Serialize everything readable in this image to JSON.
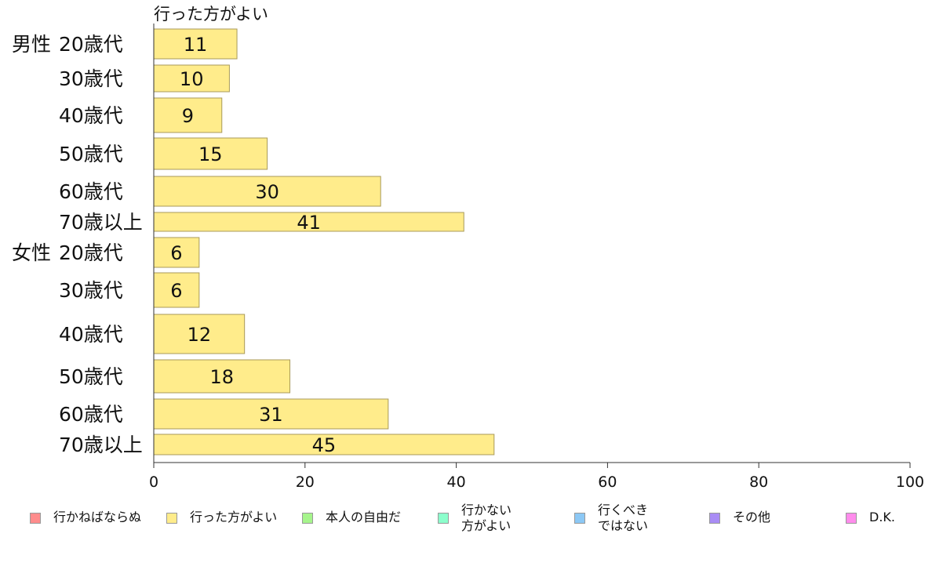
{
  "chart_data": {
    "type": "bar",
    "orientation": "horizontal",
    "title": "行った方がよい",
    "groups": [
      {
        "name": "男性",
        "categories": [
          "20歳代",
          "30歳代",
          "40歳代",
          "50歳代",
          "60歳代",
          "70歳以上"
        ],
        "values": [
          11,
          10,
          9,
          15,
          30,
          41
        ]
      },
      {
        "name": "女性",
        "categories": [
          "20歳代",
          "30歳代",
          "40歳代",
          "50歳代",
          "60歳代",
          "70歳以上"
        ],
        "values": [
          6,
          6,
          12,
          18,
          31,
          45
        ]
      }
    ],
    "xlim": [
      0,
      100
    ],
    "xticks": [
      "0",
      "20",
      "40",
      "60",
      "80",
      "100"
    ],
    "bar_color": "#ffec8b",
    "grid": false,
    "legend_position": "bottom",
    "legend": [
      {
        "label": "行かねばならぬ",
        "color": "#ff8c8c"
      },
      {
        "label": "行った方がよい",
        "color": "#ffec8b"
      },
      {
        "label": "本人の自由だ",
        "color": "#a6f58c"
      },
      {
        "label": "行かない\n方がよい",
        "color": "#8cffcc"
      },
      {
        "label": "行くべき\nではない",
        "color": "#8cc8f5"
      },
      {
        "label": "その他",
        "color": "#a98cf5"
      },
      {
        "label": "D.K.",
        "color": "#ff8cec"
      }
    ]
  }
}
